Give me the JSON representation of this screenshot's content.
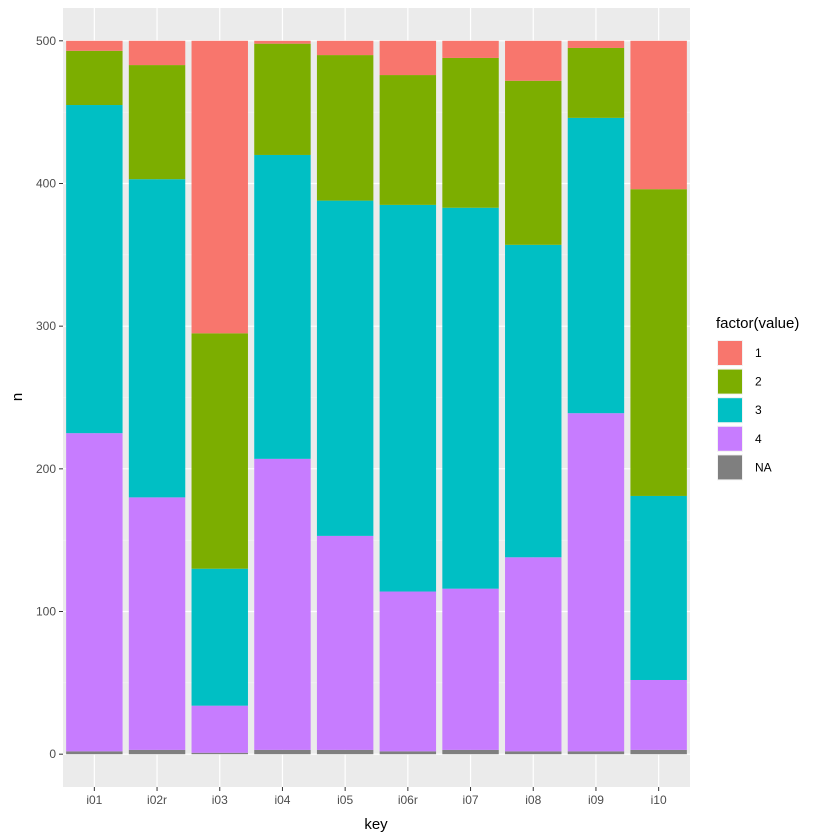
{
  "chart_data": {
    "type": "bar",
    "stacked": true,
    "title": "",
    "xlabel": "key",
    "ylabel": "n",
    "ylim": [
      -23,
      523
    ],
    "yticks": [
      0,
      100,
      200,
      300,
      400,
      500
    ],
    "categories": [
      "i01",
      "i02r",
      "i03",
      "i04",
      "i05",
      "i06r",
      "i07",
      "i08",
      "i09",
      "i10"
    ],
    "legend": {
      "title": "factor(value)",
      "position": "right"
    },
    "series": [
      {
        "name": "NA",
        "color": "#7F7F7F",
        "values": [
          2,
          3,
          1,
          3,
          3,
          2,
          3,
          2,
          2,
          3
        ]
      },
      {
        "name": "4",
        "color": "#C77CFF",
        "values": [
          223,
          177,
          33,
          204,
          150,
          112,
          113,
          136,
          237,
          49
        ]
      },
      {
        "name": "3",
        "color": "#00BFC4",
        "values": [
          230,
          223,
          96,
          213,
          235,
          271,
          267,
          219,
          207,
          129
        ]
      },
      {
        "name": "2",
        "color": "#7CAE00",
        "values": [
          38,
          80,
          165,
          78,
          102,
          91,
          105,
          115,
          49,
          215
        ]
      },
      {
        "name": "1",
        "color": "#F8766D",
        "values": [
          7,
          17,
          205,
          2,
          10,
          24,
          12,
          28,
          5,
          104
        ]
      }
    ],
    "legend_order": [
      "1",
      "2",
      "3",
      "4",
      "NA"
    ]
  }
}
